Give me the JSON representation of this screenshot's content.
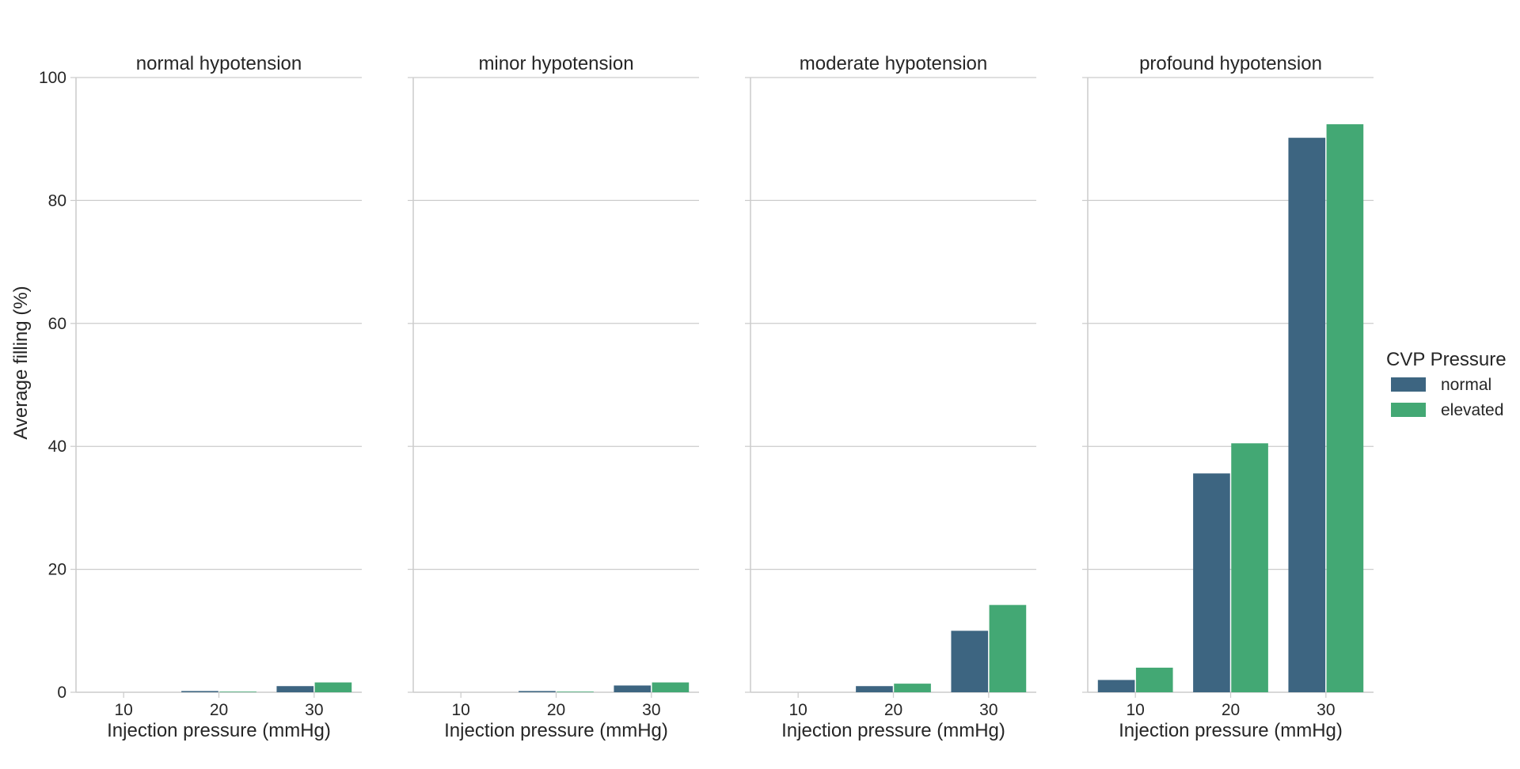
{
  "chart_data": {
    "type": "bar",
    "ylabel": "Average filling (%)",
    "ylim": [
      0,
      100
    ],
    "yticks": [
      0,
      20,
      40,
      60,
      80,
      100
    ],
    "grid": "horizontal",
    "categories": [
      "10",
      "20",
      "30"
    ],
    "hue_order": [
      "normal",
      "elevated"
    ],
    "legend": {
      "title": "CVP Pressure",
      "position": "right",
      "colors": {
        "normal": "#3d6581",
        "elevated": "#43a874"
      }
    },
    "facets": [
      {
        "title": "normal hypotension",
        "xlabel": "Injection pressure (mmHg)",
        "series": [
          {
            "name": "normal",
            "values": [
              0,
              0.2,
              1.0
            ]
          },
          {
            "name": "elevated",
            "values": [
              0,
              0.1,
              1.6
            ]
          }
        ]
      },
      {
        "title": "minor hypotension",
        "xlabel": "Injection pressure (mmHg)",
        "series": [
          {
            "name": "normal",
            "values": [
              0,
              0.2,
              1.1
            ]
          },
          {
            "name": "elevated",
            "values": [
              0,
              0.1,
              1.6
            ]
          }
        ]
      },
      {
        "title": "moderate hypotension",
        "xlabel": "Injection pressure (mmHg)",
        "series": [
          {
            "name": "normal",
            "values": [
              0,
              1.0,
              10.0
            ]
          },
          {
            "name": "elevated",
            "values": [
              0,
              1.4,
              14.2
            ]
          }
        ]
      },
      {
        "title": "profound hypotension",
        "xlabel": "Injection pressure (mmHg)",
        "series": [
          {
            "name": "normal",
            "values": [
              2.0,
              35.6,
              90.2
            ]
          },
          {
            "name": "elevated",
            "values": [
              4.0,
              40.5,
              92.4
            ]
          }
        ]
      }
    ]
  }
}
